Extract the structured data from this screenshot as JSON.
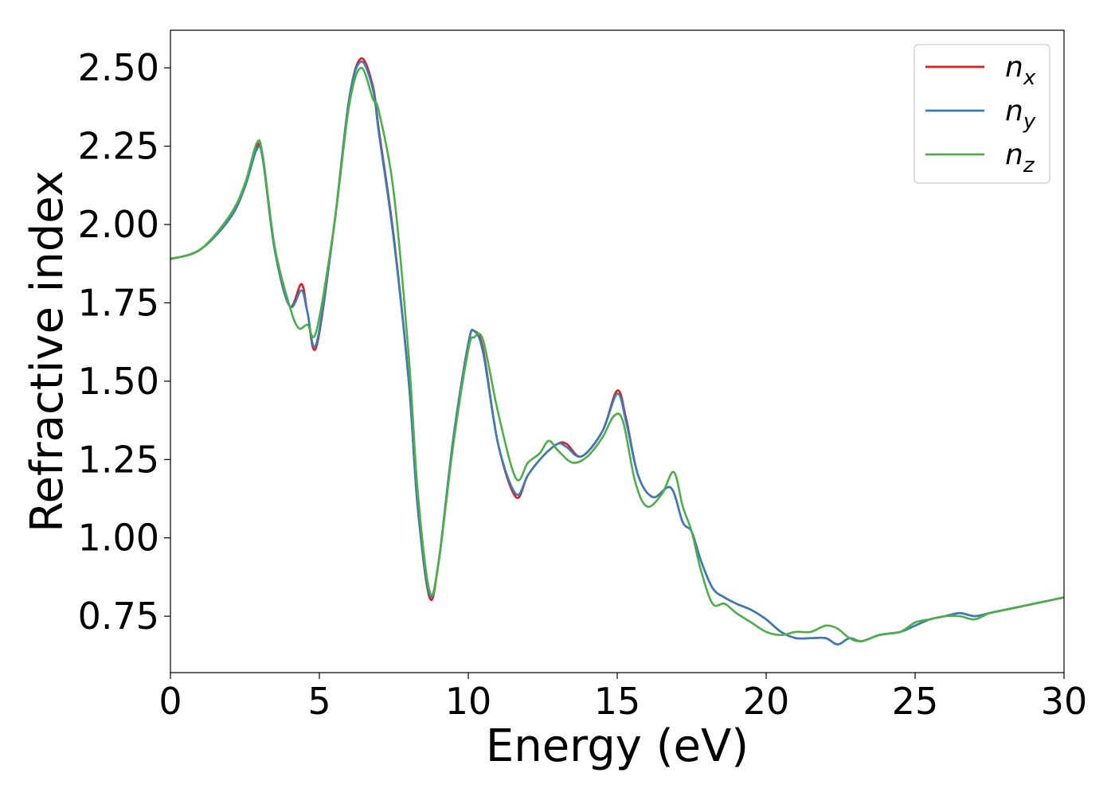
{
  "chart_data": {
    "type": "line",
    "title": "",
    "xlabel": "Energy (eV)",
    "ylabel": "Refractive index",
    "xlim": [
      0,
      30
    ],
    "ylim": [
      0.57,
      2.62
    ],
    "xticks": [
      0,
      5,
      10,
      15,
      20,
      25,
      30
    ],
    "xtick_labels": [
      "0",
      "5",
      "10",
      "15",
      "20",
      "25",
      "30"
    ],
    "yticks": [
      0.75,
      1.0,
      1.25,
      1.5,
      1.75,
      2.0,
      2.25,
      2.5
    ],
    "ytick_labels": [
      "0.75",
      "1.00",
      "1.25",
      "1.50",
      "1.75",
      "2.00",
      "2.25",
      "2.50"
    ],
    "grid": false,
    "legend_position": "top-right",
    "series": [
      {
        "name": "n_x",
        "label_base": "n",
        "label_sub": "x",
        "color": "#e41a1c",
        "x": [
          0,
          1,
          2,
          2.5,
          2.9,
          3.1,
          3.5,
          4.0,
          4.4,
          4.6,
          4.9,
          5.5,
          6.0,
          6.4,
          6.8,
          7.0,
          7.5,
          8.0,
          8.3,
          8.7,
          9.0,
          9.5,
          10.0,
          10.2,
          10.5,
          11.0,
          11.6,
          12.0,
          12.5,
          13.0,
          13.3,
          13.8,
          14.5,
          15.0,
          15.3,
          15.7,
          16.2,
          16.8,
          17.2,
          17.5,
          17.8,
          18.2,
          18.6,
          19.0,
          19.5,
          20.0,
          20.5,
          21.0,
          21.5,
          22.0,
          22.4,
          22.8,
          23.2,
          23.8,
          24.5,
          25.0,
          25.5,
          26.0,
          26.5,
          27.0,
          27.5,
          28.0,
          28.5,
          29.0,
          29.5,
          30.0
        ],
        "y": [
          1.89,
          1.92,
          2.02,
          2.12,
          2.25,
          2.21,
          1.92,
          1.74,
          1.81,
          1.72,
          1.61,
          2.0,
          2.4,
          2.53,
          2.44,
          2.3,
          1.96,
          1.5,
          1.1,
          0.81,
          0.92,
          1.32,
          1.62,
          1.66,
          1.6,
          1.3,
          1.13,
          1.2,
          1.26,
          1.3,
          1.3,
          1.26,
          1.34,
          1.47,
          1.38,
          1.2,
          1.13,
          1.16,
          1.05,
          1.02,
          0.93,
          0.84,
          0.81,
          0.79,
          0.77,
          0.74,
          0.7,
          0.68,
          0.68,
          0.68,
          0.66,
          0.68,
          0.67,
          0.69,
          0.7,
          0.72,
          0.74,
          0.75,
          0.76,
          0.75,
          0.76,
          0.77,
          0.78,
          0.79,
          0.8,
          0.81
        ]
      },
      {
        "name": "n_y",
        "label_base": "n",
        "label_sub": "y",
        "color": "#377eb8",
        "x": [
          0,
          1,
          2,
          2.5,
          2.9,
          3.1,
          3.5,
          4.0,
          4.4,
          4.6,
          4.9,
          5.5,
          6.0,
          6.4,
          6.8,
          7.0,
          7.5,
          8.0,
          8.3,
          8.7,
          9.0,
          9.5,
          10.0,
          10.2,
          10.5,
          11.0,
          11.6,
          12.0,
          12.5,
          13.0,
          13.3,
          13.8,
          14.5,
          15.0,
          15.3,
          15.7,
          16.2,
          16.8,
          17.2,
          17.5,
          17.8,
          18.2,
          18.6,
          19.0,
          19.5,
          20.0,
          20.5,
          21.0,
          21.5,
          22.0,
          22.4,
          22.8,
          23.2,
          23.8,
          24.5,
          25.0,
          25.5,
          26.0,
          26.5,
          27.0,
          27.5,
          28.0,
          28.5,
          29.0,
          29.5,
          30.0
        ],
        "y": [
          1.89,
          1.92,
          2.02,
          2.12,
          2.24,
          2.21,
          1.92,
          1.74,
          1.79,
          1.72,
          1.62,
          2.0,
          2.4,
          2.52,
          2.43,
          2.29,
          1.95,
          1.5,
          1.1,
          0.82,
          0.92,
          1.32,
          1.62,
          1.66,
          1.59,
          1.3,
          1.14,
          1.2,
          1.26,
          1.3,
          1.29,
          1.26,
          1.34,
          1.46,
          1.37,
          1.2,
          1.13,
          1.16,
          1.05,
          1.02,
          0.93,
          0.84,
          0.81,
          0.79,
          0.77,
          0.74,
          0.7,
          0.68,
          0.68,
          0.68,
          0.66,
          0.68,
          0.67,
          0.69,
          0.7,
          0.72,
          0.74,
          0.75,
          0.76,
          0.75,
          0.76,
          0.77,
          0.78,
          0.79,
          0.8,
          0.81
        ]
      },
      {
        "name": "n_z",
        "label_base": "n",
        "label_sub": "z",
        "color": "#4daf4a",
        "x": [
          0,
          1,
          2,
          2.5,
          2.9,
          3.1,
          3.5,
          4.0,
          4.3,
          4.6,
          4.9,
          5.5,
          6.0,
          6.4,
          6.8,
          7.0,
          7.5,
          8.0,
          8.3,
          8.7,
          9.0,
          9.5,
          10.0,
          10.2,
          10.5,
          11.0,
          11.6,
          12.0,
          12.4,
          12.7,
          13.0,
          13.5,
          14.0,
          14.5,
          14.9,
          15.2,
          15.6,
          16.0,
          16.5,
          16.9,
          17.2,
          17.5,
          17.8,
          18.2,
          18.6,
          19.0,
          19.5,
          20.0,
          20.5,
          21.0,
          21.5,
          22.0,
          22.4,
          22.8,
          23.2,
          23.8,
          24.5,
          25.0,
          25.5,
          26.0,
          26.5,
          27.0,
          27.5,
          28.0,
          28.5,
          29.0,
          29.5,
          30.0
        ],
        "y": [
          1.89,
          1.92,
          2.03,
          2.13,
          2.26,
          2.22,
          1.93,
          1.74,
          1.67,
          1.68,
          1.66,
          2.0,
          2.38,
          2.5,
          2.4,
          2.36,
          2.1,
          1.58,
          1.15,
          0.83,
          0.92,
          1.3,
          1.6,
          1.64,
          1.63,
          1.4,
          1.19,
          1.24,
          1.27,
          1.31,
          1.28,
          1.24,
          1.26,
          1.32,
          1.39,
          1.37,
          1.18,
          1.1,
          1.14,
          1.21,
          1.1,
          1.02,
          0.9,
          0.79,
          0.79,
          0.76,
          0.73,
          0.7,
          0.69,
          0.7,
          0.7,
          0.72,
          0.71,
          0.68,
          0.67,
          0.69,
          0.7,
          0.73,
          0.74,
          0.75,
          0.75,
          0.74,
          0.76,
          0.77,
          0.78,
          0.79,
          0.8,
          0.81
        ]
      }
    ]
  }
}
